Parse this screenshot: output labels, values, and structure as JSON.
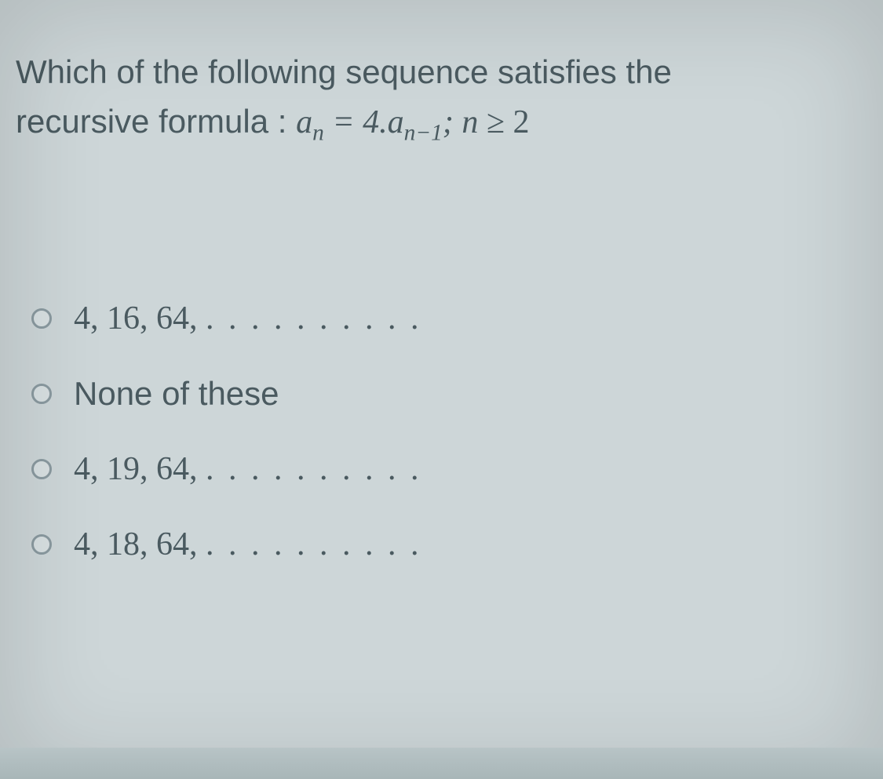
{
  "question": {
    "line1": "Which of the following sequence satisfies the",
    "line2_prefix": "recursive formula : ",
    "formula": {
      "a": "a",
      "sub_n": "n",
      "eq": " = 4.",
      "a2": "a",
      "sub_n1": "n−1",
      "semi": "; ",
      "n": "n",
      "ge": " ≥ 2"
    }
  },
  "options": [
    {
      "text": "4, 16, 64, ",
      "dots": ". . . . . . . . . .",
      "serif": true
    },
    {
      "text": "None of these",
      "dots": "",
      "serif": false
    },
    {
      "text": "4, 19, 64, ",
      "dots": ". . . . . . . . . .",
      "serif": true
    },
    {
      "text": "4, 18, 64, ",
      "dots": ". . . . . . . . . .",
      "serif": true
    }
  ],
  "colors": {
    "background": "#cdd6d8",
    "text": "#4a5a60",
    "radio_border": "#8a9aa0"
  },
  "typography": {
    "question_fontsize": 42,
    "option_fontsize": 42
  }
}
